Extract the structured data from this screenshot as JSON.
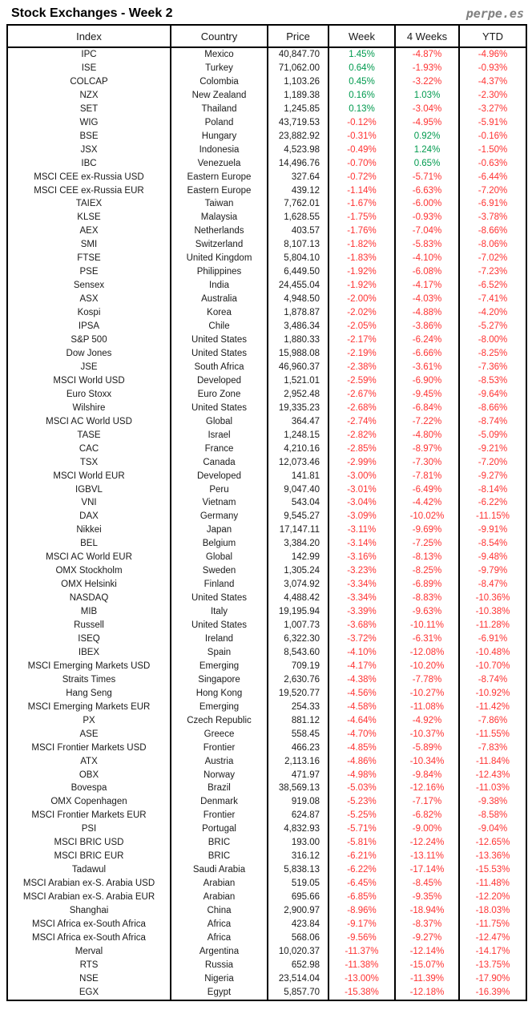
{
  "header": {
    "title": "Stock Exchanges - Week 2",
    "logo": "perpe.es"
  },
  "colors": {
    "positive": "#009A4E",
    "negative": "#FF3333",
    "text": "#1A1A1A",
    "border": "#000000",
    "logo_gray": "#808080"
  },
  "chart_data": {
    "type": "table",
    "title": "Stock Exchanges - Week 2",
    "source": "perpe.es",
    "columns": [
      "Index",
      "Country",
      "Price",
      "Week",
      "4 Weeks",
      "YTD"
    ],
    "rows": [
      [
        "IPC",
        "Mexico",
        "40,847.70",
        "1.45%",
        "-4.87%",
        "-4.96%"
      ],
      [
        "ISE",
        "Turkey",
        "71,062.00",
        "0.64%",
        "-1.93%",
        "-0.93%"
      ],
      [
        "COLCAP",
        "Colombia",
        "1,103.26",
        "0.45%",
        "-3.22%",
        "-4.37%"
      ],
      [
        "NZX",
        "New Zealand",
        "1,189.38",
        "0.16%",
        "1.03%",
        "-2.30%"
      ],
      [
        "SET",
        "Thailand",
        "1,245.85",
        "0.13%",
        "-3.04%",
        "-3.27%"
      ],
      [
        "WIG",
        "Poland",
        "43,719.53",
        "-0.12%",
        "-4.95%",
        "-5.91%"
      ],
      [
        "BSE",
        "Hungary",
        "23,882.92",
        "-0.31%",
        "0.92%",
        "-0.16%"
      ],
      [
        "JSX",
        "Indonesia",
        "4,523.98",
        "-0.49%",
        "1.24%",
        "-1.50%"
      ],
      [
        "IBC",
        "Venezuela",
        "14,496.76",
        "-0.70%",
        "0.65%",
        "-0.63%"
      ],
      [
        "MSCI CEE ex-Russia USD",
        "Eastern Europe",
        "327.64",
        "-0.72%",
        "-5.71%",
        "-6.44%"
      ],
      [
        "MSCI CEE ex-Russia EUR",
        "Eastern Europe",
        "439.12",
        "-1.14%",
        "-6.63%",
        "-7.20%"
      ],
      [
        "TAIEX",
        "Taiwan",
        "7,762.01",
        "-1.67%",
        "-6.00%",
        "-6.91%"
      ],
      [
        "KLSE",
        "Malaysia",
        "1,628.55",
        "-1.75%",
        "-0.93%",
        "-3.78%"
      ],
      [
        "AEX",
        "Netherlands",
        "403.57",
        "-1.76%",
        "-7.04%",
        "-8.66%"
      ],
      [
        "SMI",
        "Switzerland",
        "8,107.13",
        "-1.82%",
        "-5.83%",
        "-8.06%"
      ],
      [
        "FTSE",
        "United Kingdom",
        "5,804.10",
        "-1.83%",
        "-4.10%",
        "-7.02%"
      ],
      [
        "PSE",
        "Philippines",
        "6,449.50",
        "-1.92%",
        "-6.08%",
        "-7.23%"
      ],
      [
        "Sensex",
        "India",
        "24,455.04",
        "-1.92%",
        "-4.17%",
        "-6.52%"
      ],
      [
        "ASX",
        "Australia",
        "4,948.50",
        "-2.00%",
        "-4.03%",
        "-7.41%"
      ],
      [
        "Kospi",
        "Korea",
        "1,878.87",
        "-2.02%",
        "-4.88%",
        "-4.20%"
      ],
      [
        "IPSA",
        "Chile",
        "3,486.34",
        "-2.05%",
        "-3.86%",
        "-5.27%"
      ],
      [
        "S&P 500",
        "United States",
        "1,880.33",
        "-2.17%",
        "-6.24%",
        "-8.00%"
      ],
      [
        "Dow Jones",
        "United States",
        "15,988.08",
        "-2.19%",
        "-6.66%",
        "-8.25%"
      ],
      [
        "JSE",
        "South Africa",
        "46,960.37",
        "-2.38%",
        "-3.61%",
        "-7.36%"
      ],
      [
        "MSCI World USD",
        "Developed",
        "1,521.01",
        "-2.59%",
        "-6.90%",
        "-8.53%"
      ],
      [
        "Euro Stoxx",
        "Euro Zone",
        "2,952.48",
        "-2.67%",
        "-9.45%",
        "-9.64%"
      ],
      [
        "Wilshire",
        "United States",
        "19,335.23",
        "-2.68%",
        "-6.84%",
        "-8.66%"
      ],
      [
        "MSCI AC World USD",
        "Global",
        "364.47",
        "-2.74%",
        "-7.22%",
        "-8.74%"
      ],
      [
        "TASE",
        "Israel",
        "1,248.15",
        "-2.82%",
        "-4.80%",
        "-5.09%"
      ],
      [
        "CAC",
        "France",
        "4,210.16",
        "-2.85%",
        "-8.97%",
        "-9.21%"
      ],
      [
        "TSX",
        "Canada",
        "12,073.46",
        "-2.99%",
        "-7.30%",
        "-7.20%"
      ],
      [
        "MSCI World EUR",
        "Developed",
        "141.81",
        "-3.00%",
        "-7.81%",
        "-9.27%"
      ],
      [
        "IGBVL",
        "Peru",
        "9,047.40",
        "-3.01%",
        "-6.49%",
        "-8.14%"
      ],
      [
        "VNI",
        "Vietnam",
        "543.04",
        "-3.04%",
        "-4.42%",
        "-6.22%"
      ],
      [
        "DAX",
        "Germany",
        "9,545.27",
        "-3.09%",
        "-10.02%",
        "-11.15%"
      ],
      [
        "Nikkei",
        "Japan",
        "17,147.11",
        "-3.11%",
        "-9.69%",
        "-9.91%"
      ],
      [
        "BEL",
        "Belgium",
        "3,384.20",
        "-3.14%",
        "-7.25%",
        "-8.54%"
      ],
      [
        "MSCI AC World EUR",
        "Global",
        "142.99",
        "-3.16%",
        "-8.13%",
        "-9.48%"
      ],
      [
        "OMX Stockholm",
        "Sweden",
        "1,305.24",
        "-3.23%",
        "-8.25%",
        "-9.79%"
      ],
      [
        "OMX Helsinki",
        "Finland",
        "3,074.92",
        "-3.34%",
        "-6.89%",
        "-8.47%"
      ],
      [
        "NASDAQ",
        "United States",
        "4,488.42",
        "-3.34%",
        "-8.83%",
        "-10.36%"
      ],
      [
        "MIB",
        "Italy",
        "19,195.94",
        "-3.39%",
        "-9.63%",
        "-10.38%"
      ],
      [
        "Russell",
        "United States",
        "1,007.73",
        "-3.68%",
        "-10.11%",
        "-11.28%"
      ],
      [
        "ISEQ",
        "Ireland",
        "6,322.30",
        "-3.72%",
        "-6.31%",
        "-6.91%"
      ],
      [
        "IBEX",
        "Spain",
        "8,543.60",
        "-4.10%",
        "-12.08%",
        "-10.48%"
      ],
      [
        "MSCI Emerging Markets USD",
        "Emerging",
        "709.19",
        "-4.17%",
        "-10.20%",
        "-10.70%"
      ],
      [
        "Straits Times",
        "Singapore",
        "2,630.76",
        "-4.38%",
        "-7.78%",
        "-8.74%"
      ],
      [
        "Hang Seng",
        "Hong Kong",
        "19,520.77",
        "-4.56%",
        "-10.27%",
        "-10.92%"
      ],
      [
        "MSCI Emerging Markets EUR",
        "Emerging",
        "254.33",
        "-4.58%",
        "-11.08%",
        "-11.42%"
      ],
      [
        "PX",
        "Czech Republic",
        "881.12",
        "-4.64%",
        "-4.92%",
        "-7.86%"
      ],
      [
        "ASE",
        "Greece",
        "558.45",
        "-4.70%",
        "-10.37%",
        "-11.55%"
      ],
      [
        "MSCI Frontier Markets USD",
        "Frontier",
        "466.23",
        "-4.85%",
        "-5.89%",
        "-7.83%"
      ],
      [
        "ATX",
        "Austria",
        "2,113.16",
        "-4.86%",
        "-10.34%",
        "-11.84%"
      ],
      [
        "OBX",
        "Norway",
        "471.97",
        "-4.98%",
        "-9.84%",
        "-12.43%"
      ],
      [
        "Bovespa",
        "Brazil",
        "38,569.13",
        "-5.03%",
        "-12.16%",
        "-11.03%"
      ],
      [
        "OMX Copenhagen",
        "Denmark",
        "919.08",
        "-5.23%",
        "-7.17%",
        "-9.38%"
      ],
      [
        "MSCI Frontier Markets EUR",
        "Frontier",
        "624.87",
        "-5.25%",
        "-6.82%",
        "-8.58%"
      ],
      [
        "PSI",
        "Portugal",
        "4,832.93",
        "-5.71%",
        "-9.00%",
        "-9.04%"
      ],
      [
        "MSCI BRIC USD",
        "BRIC",
        "193.00",
        "-5.81%",
        "-12.24%",
        "-12.65%"
      ],
      [
        "MSCI BRIC EUR",
        "BRIC",
        "316.12",
        "-6.21%",
        "-13.11%",
        "-13.36%"
      ],
      [
        "Tadawul",
        "Saudi Arabia",
        "5,838.13",
        "-6.22%",
        "-17.14%",
        "-15.53%"
      ],
      [
        "MSCI Arabian ex-S. Arabia USD",
        "Arabian",
        "519.05",
        "-6.45%",
        "-8.45%",
        "-11.48%"
      ],
      [
        "MSCI Arabian ex-S. Arabia EUR",
        "Arabian",
        "695.66",
        "-6.85%",
        "-9.35%",
        "-12.20%"
      ],
      [
        "Shanghai",
        "China",
        "2,900.97",
        "-8.96%",
        "-18.94%",
        "-18.03%"
      ],
      [
        "MSCI Africa ex-South Africa",
        "Africa",
        "423.84",
        "-9.17%",
        "-8.37%",
        "-11.75%"
      ],
      [
        "MSCI Africa ex-South Africa",
        "Africa",
        "568.06",
        "-9.56%",
        "-9.27%",
        "-12.47%"
      ],
      [
        "Merval",
        "Argentina",
        "10,020.37",
        "-11.37%",
        "-12.14%",
        "-14.17%"
      ],
      [
        "RTS",
        "Russia",
        "652.98",
        "-11.38%",
        "-15.07%",
        "-13.75%"
      ],
      [
        "NSE",
        "Nigeria",
        "23,514.04",
        "-13.00%",
        "-11.39%",
        "-17.90%"
      ],
      [
        "EGX",
        "Egypt",
        "5,857.70",
        "-15.38%",
        "-12.18%",
        "-16.39%"
      ]
    ]
  }
}
